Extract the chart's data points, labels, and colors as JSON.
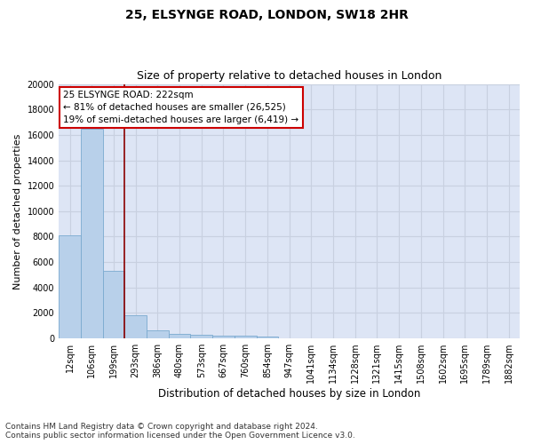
{
  "title1": "25, ELSYNGE ROAD, LONDON, SW18 2HR",
  "title2": "Size of property relative to detached houses in London",
  "xlabel": "Distribution of detached houses by size in London",
  "ylabel": "Number of detached properties",
  "categories": [
    "12sqm",
    "106sqm",
    "199sqm",
    "293sqm",
    "386sqm",
    "480sqm",
    "573sqm",
    "667sqm",
    "760sqm",
    "854sqm",
    "947sqm",
    "1041sqm",
    "1134sqm",
    "1228sqm",
    "1321sqm",
    "1415sqm",
    "1508sqm",
    "1602sqm",
    "1695sqm",
    "1789sqm",
    "1882sqm"
  ],
  "values": [
    8100,
    16500,
    5300,
    1850,
    650,
    350,
    270,
    230,
    200,
    170,
    0,
    0,
    0,
    0,
    0,
    0,
    0,
    0,
    0,
    0,
    0
  ],
  "bar_color": "#b8d0ea",
  "bar_edge_color": "#7aaacf",
  "vline_color": "#8b0000",
  "annotation_text": "25 ELSYNGE ROAD: 222sqm\n← 81% of detached houses are smaller (26,525)\n19% of semi-detached houses are larger (6,419) →",
  "annotation_box_edge": "#cc0000",
  "ylim": [
    0,
    20000
  ],
  "yticks": [
    0,
    2000,
    4000,
    6000,
    8000,
    10000,
    12000,
    14000,
    16000,
    18000,
    20000
  ],
  "footnote": "Contains HM Land Registry data © Crown copyright and database right 2024.\nContains public sector information licensed under the Open Government Licence v3.0.",
  "bg_color": "#dde5f5",
  "grid_color": "#c8d0e0",
  "title1_fontsize": 10,
  "title2_fontsize": 9,
  "xlabel_fontsize": 8.5,
  "ylabel_fontsize": 8,
  "tick_fontsize": 7,
  "footnote_fontsize": 6.5
}
